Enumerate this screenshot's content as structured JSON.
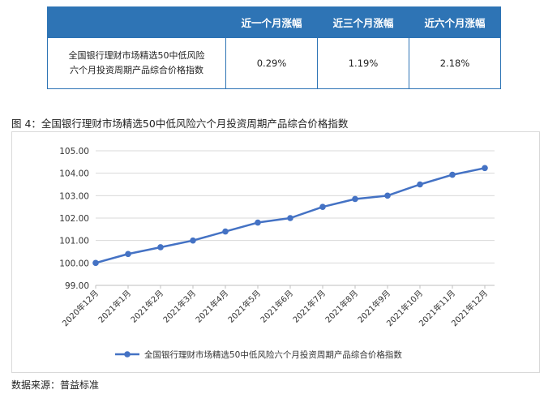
{
  "table": {
    "headers": [
      "",
      "近一个月涨幅",
      "近三个月涨幅",
      "近六个月涨幅"
    ],
    "row_label_line1": "全国银行理财市场精选50中低风险",
    "row_label_line2": "六个月投资周期产品综合价格指数",
    "values": [
      "0.29%",
      "1.19%",
      "2.18%"
    ]
  },
  "caption": "图 4：全国银行理财市场精选50中低风险六个月投资周期产品综合价格指数",
  "source": "数据来源：普益标准",
  "colors": {
    "accent": "#2E74B5",
    "line": "#4472C4",
    "grid": "#d9d9d9"
  },
  "chart_data": {
    "type": "line",
    "categories": [
      "2020年12月",
      "2021年1月",
      "2021年2月",
      "2021年3月",
      "2021年4月",
      "2021年5月",
      "2021年6月",
      "2021年7月",
      "2021年8月",
      "2021年9月",
      "2021年10月",
      "2021年11月",
      "2021年12月"
    ],
    "series": [
      {
        "name": "全国银行理财市场精选50中低风险六个月投资周期产品综合价格指数",
        "values": [
          100.0,
          100.4,
          100.7,
          101.0,
          101.4,
          101.8,
          102.0,
          102.5,
          102.85,
          103.0,
          103.5,
          103.93,
          104.23
        ]
      }
    ],
    "ylim": [
      99.0,
      105.0
    ],
    "yticks": [
      "99.00",
      "100.00",
      "101.00",
      "102.00",
      "103.00",
      "104.00",
      "105.00"
    ],
    "grid": "horizontal",
    "legend": "bottom"
  }
}
